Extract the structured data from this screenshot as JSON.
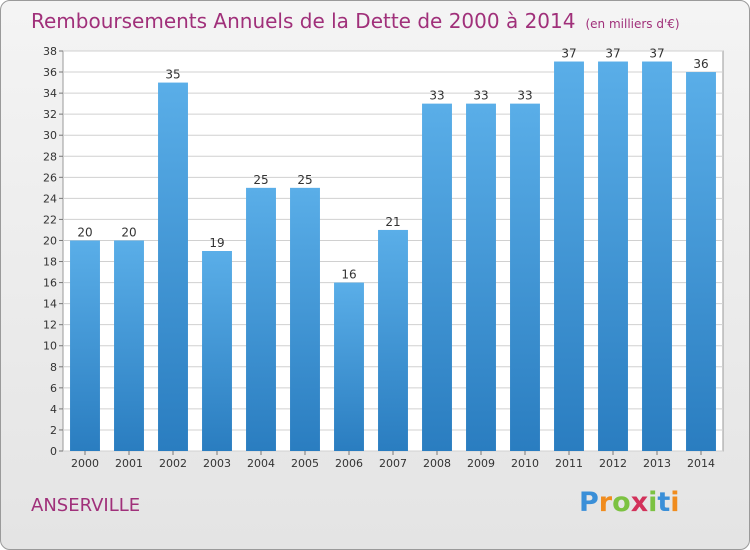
{
  "title": "Remboursements Annuels de la Dette de 2000 à 2014",
  "unit": "(en milliers d'€)",
  "commune": "ANSERVILLE",
  "logo": {
    "text": "Proxiti",
    "letters": [
      "P",
      "r",
      "o",
      "x",
      "i",
      "t",
      "i"
    ]
  },
  "colors": {
    "title": "#a0307a",
    "bar_top": "#5aaee8",
    "bar_bottom": "#2a7dc0",
    "logo": [
      "#3a8fd8",
      "#f08c1e",
      "#7cc242",
      "#d2315a",
      "#7cc242",
      "#3a8fd8",
      "#f08c1e"
    ]
  },
  "chart_data": {
    "type": "bar",
    "title": "Remboursements Annuels de la Dette de 2000 à 2014",
    "categories": [
      "2000",
      "2001",
      "2002",
      "2003",
      "2004",
      "2005",
      "2006",
      "2007",
      "2008",
      "2009",
      "2010",
      "2011",
      "2012",
      "2013",
      "2014"
    ],
    "values": [
      20,
      20,
      35,
      19,
      25,
      25,
      16,
      21,
      33,
      33,
      33,
      37,
      37,
      37,
      36
    ],
    "ylim": [
      0,
      38
    ],
    "yticks": [
      0,
      2,
      4,
      6,
      8,
      10,
      12,
      14,
      16,
      18,
      20,
      22,
      24,
      26,
      28,
      30,
      32,
      34,
      36,
      38
    ],
    "xlabel": "",
    "ylabel": "",
    "grid": true
  }
}
